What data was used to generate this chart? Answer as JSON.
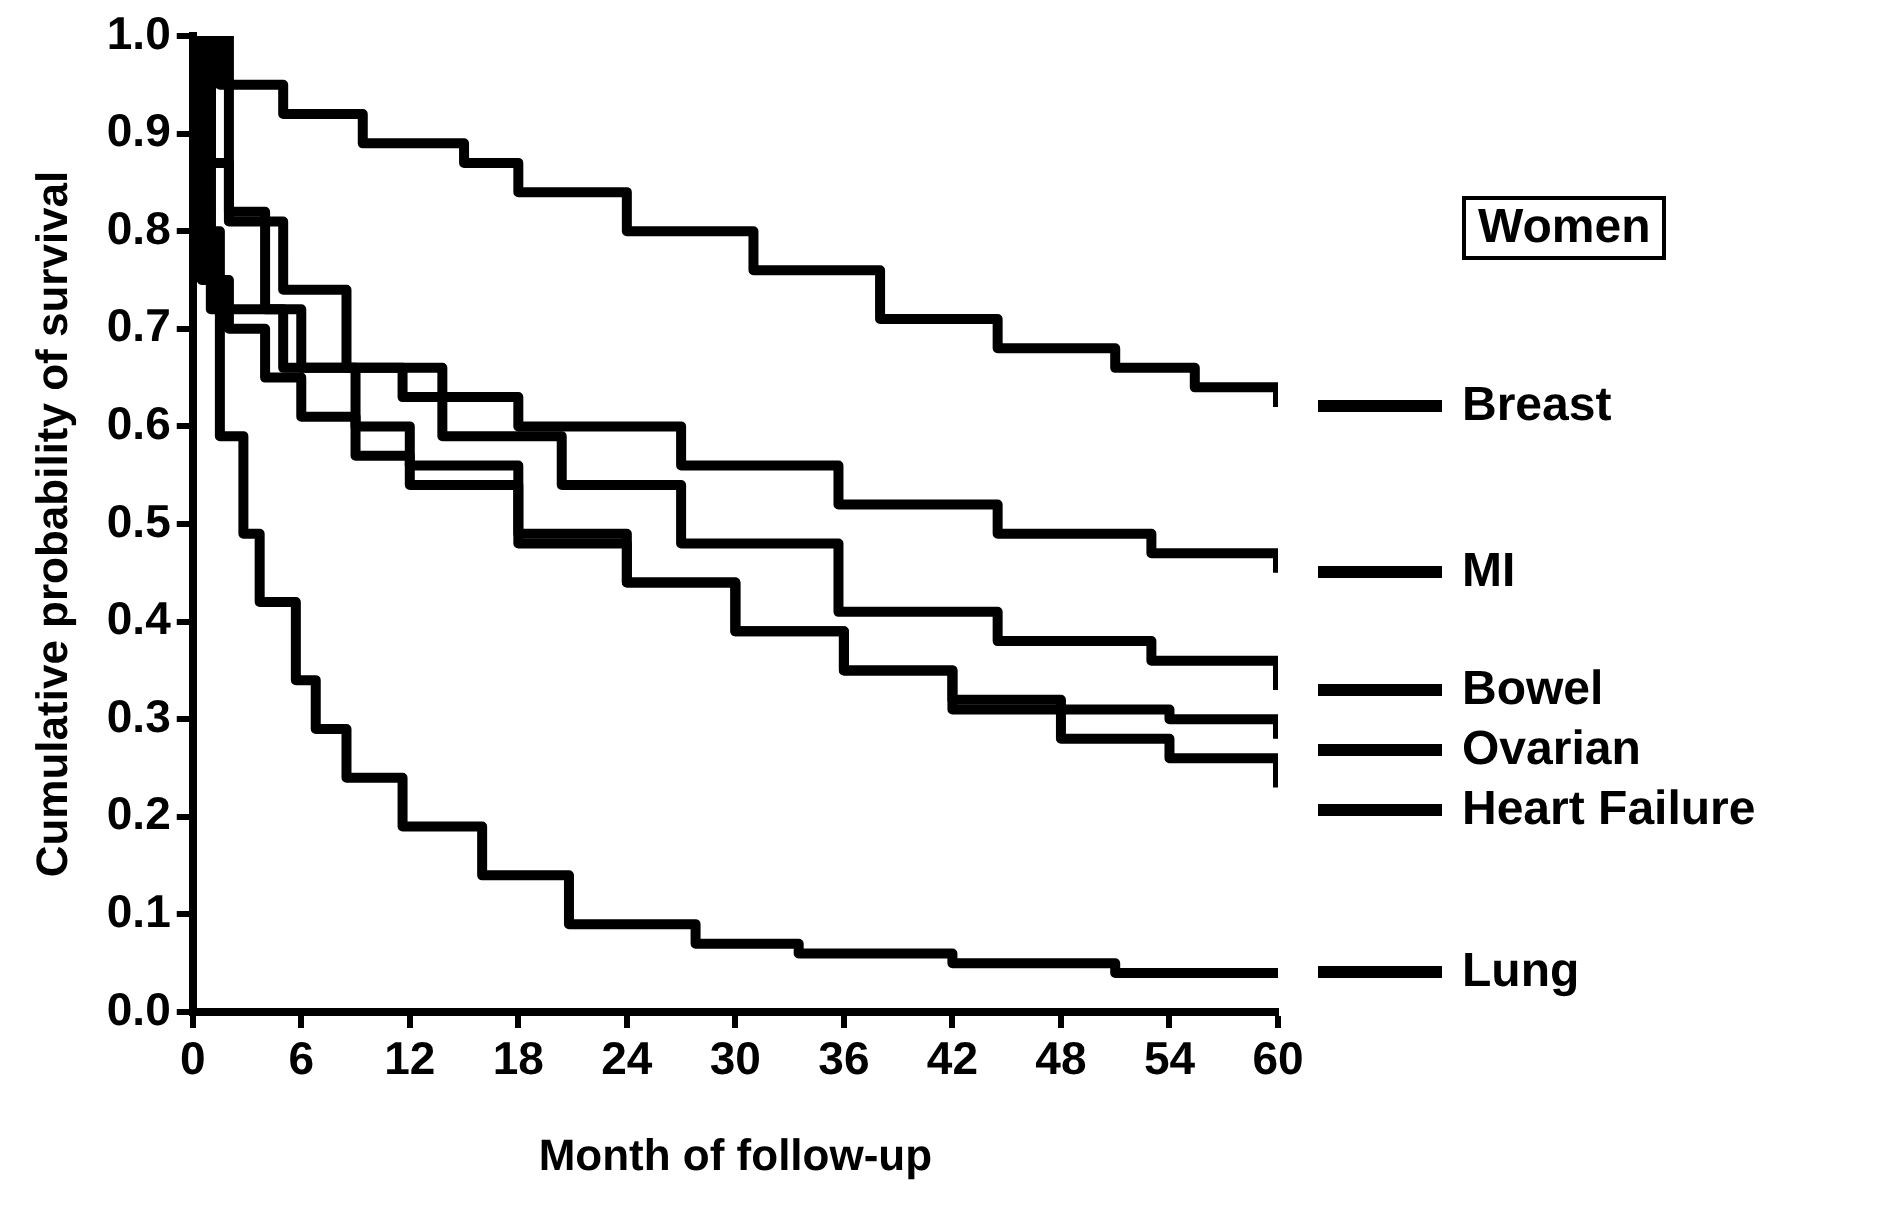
{
  "chart_data": {
    "type": "step",
    "xlabel": "Month of follow-up",
    "ylabel": "Cumulative probability of survival",
    "legend_title": "Women",
    "legend": "right",
    "grid": false,
    "marker": "none",
    "line_style": "solid",
    "xlim": [
      0,
      60
    ],
    "xticks": [
      0,
      6,
      12,
      18,
      24,
      30,
      36,
      42,
      48,
      54,
      60
    ],
    "ylim": [
      0,
      1.0
    ],
    "yticks": [
      {
        "value": 0,
        "label": "0.0"
      },
      0.1,
      0.2,
      0.3,
      0.4,
      0.5,
      0.6,
      0.7,
      0.8,
      0.9,
      {
        "value": 1,
        "label": "1.0"
      }
    ],
    "series": [
      {
        "name": "Breast",
        "color": "#000000",
        "x": [
          0,
          1.5,
          5,
          9.4,
          15,
          18,
          24,
          31,
          38,
          44.5,
          51,
          55.4,
          60
        ],
        "values": [
          1.0,
          0.95,
          0.92,
          0.89,
          0.87,
          0.84,
          0.8,
          0.76,
          0.71,
          0.68,
          0.66,
          0.64,
          0.62
        ]
      },
      {
        "name": "MI",
        "color": "#000000",
        "x": [
          0,
          1,
          5,
          11.6,
          18,
          27,
          35.7,
          44.5,
          53,
          60
        ],
        "values": [
          1.0,
          0.72,
          0.66,
          0.63,
          0.6,
          0.56,
          0.52,
          0.49,
          0.47,
          0.45
        ]
      },
      {
        "name": "Bowel",
        "color": "#000000",
        "x": [
          0,
          2,
          5,
          8.5,
          13.8,
          20.4,
          27,
          35.7,
          44.5,
          53,
          60
        ],
        "values": [
          1.0,
          0.81,
          0.74,
          0.66,
          0.59,
          0.54,
          0.48,
          0.41,
          0.38,
          0.36,
          0.33
        ]
      },
      {
        "name": "Ovarian",
        "color": "#000000",
        "x": [
          0,
          1,
          2,
          4,
          6,
          9,
          12,
          18,
          24,
          30,
          36,
          42,
          48,
          54,
          60
        ],
        "values": [
          1.0,
          0.87,
          0.82,
          0.72,
          0.66,
          0.6,
          0.56,
          0.49,
          0.44,
          0.39,
          0.35,
          0.32,
          0.31,
          0.3,
          0.28
        ]
      },
      {
        "name": "Heart Failure",
        "color": "#000000",
        "x": [
          0,
          0.5,
          2,
          4,
          6,
          9,
          12,
          18,
          24,
          30,
          36,
          42,
          48,
          54,
          60
        ],
        "values": [
          1.0,
          0.75,
          0.7,
          0.65,
          0.61,
          0.57,
          0.54,
          0.48,
          0.44,
          0.39,
          0.35,
          0.31,
          0.28,
          0.26,
          0.23
        ]
      },
      {
        "name": "Lung",
        "color": "#000000",
        "x": [
          0,
          1,
          1.5,
          2.8,
          3.7,
          5.7,
          6.8,
          8.5,
          11.6,
          16,
          20.8,
          24.3,
          27.8,
          33.5,
          42,
          51,
          60
        ],
        "values": [
          1.0,
          0.8,
          0.59,
          0.49,
          0.42,
          0.34,
          0.29,
          0.24,
          0.19,
          0.14,
          0.09,
          0.09,
          0.07,
          0.06,
          0.05,
          0.04,
          0.04
        ]
      }
    ]
  }
}
